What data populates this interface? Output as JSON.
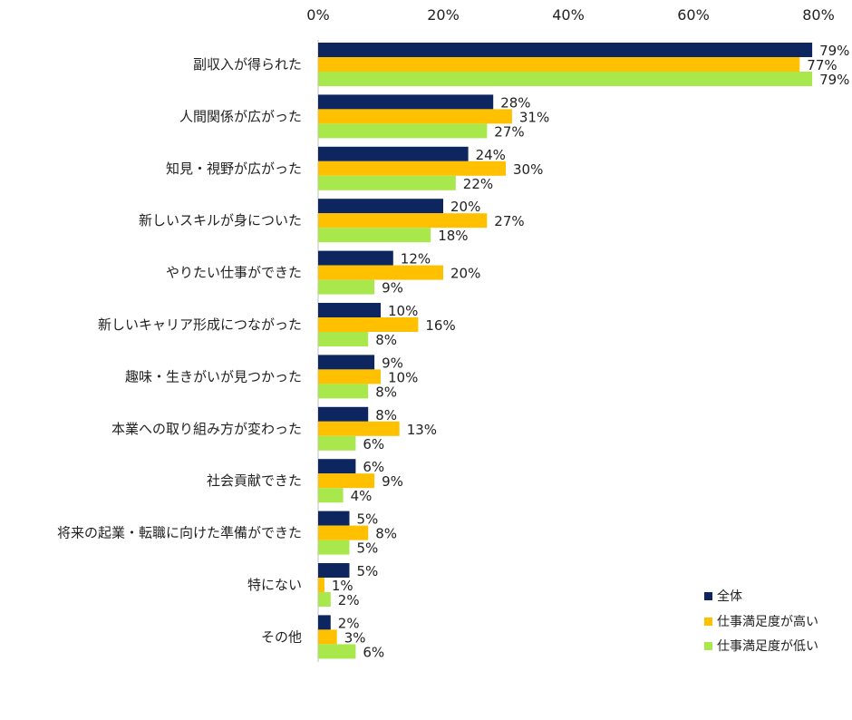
{
  "chart_data": {
    "type": "bar",
    "orientation": "horizontal",
    "title": "",
    "xlabel": "",
    "ylabel": "",
    "xlim": [
      0,
      80
    ],
    "ticks": [
      "0%",
      "20%",
      "40%",
      "60%",
      "80%"
    ],
    "tick_values": [
      0,
      20,
      40,
      60,
      80
    ],
    "grid": false,
    "legend_position": "bottom-right",
    "categories": [
      "副収入が得られた",
      "人間関係が広がった",
      "知見・視野が広がった",
      "新しいスキルが身についた",
      "やりたい仕事ができた",
      "新しいキャリア形成につながった",
      "趣味・生きがいが見つかった",
      "本業への取り組み方が変わった",
      "社会貢献できた",
      "将来の起業・転職に向けた準備ができた",
      "特にない",
      "その他"
    ],
    "series": [
      {
        "name": "全体",
        "color": "#0d2660",
        "values": [
          79,
          28,
          24,
          20,
          12,
          10,
          9,
          8,
          6,
          5,
          5,
          2
        ],
        "labels": [
          "79%",
          "28%",
          "24%",
          "20%",
          "12%",
          "10%",
          "9%",
          "8%",
          "6%",
          "5%",
          "5%",
          "2%"
        ]
      },
      {
        "name": "仕事満足度が高い",
        "color": "#ffc000",
        "values": [
          77,
          31,
          30,
          27,
          20,
          16,
          10,
          13,
          9,
          8,
          1,
          3
        ],
        "labels": [
          "77%",
          "31%",
          "30%",
          "27%",
          "20%",
          "16%",
          "10%",
          "13%",
          "9%",
          "8%",
          "1%",
          "3%"
        ]
      },
      {
        "name": "仕事満足度が低い",
        "color": "#a9e84d",
        "values": [
          79,
          27,
          22,
          18,
          9,
          8,
          8,
          6,
          4,
          5,
          2,
          6
        ],
        "labels": [
          "79%",
          "27%",
          "22%",
          "18%",
          "9%",
          "8%",
          "8%",
          "6%",
          "4%",
          "5%",
          "2%",
          "6%"
        ]
      }
    ]
  }
}
